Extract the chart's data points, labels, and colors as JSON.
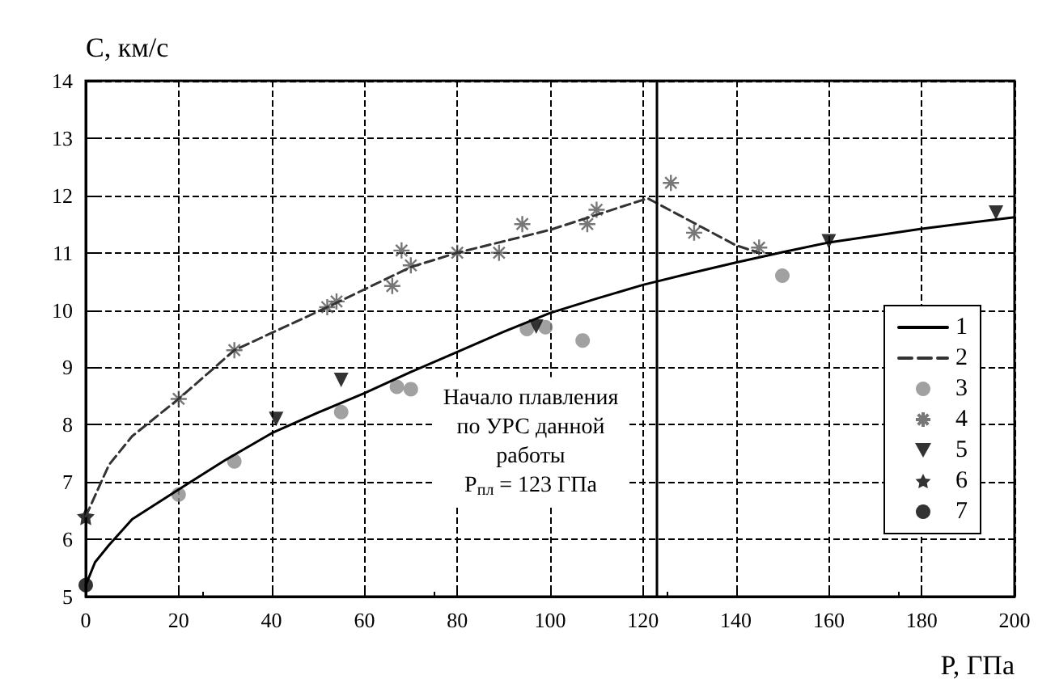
{
  "chart_data": {
    "type": "scatter",
    "xlabel": "P, ГПа",
    "ylabel": "C, км/с",
    "xlim": [
      0,
      200
    ],
    "xticks": [
      0,
      20,
      40,
      60,
      80,
      100,
      120,
      140,
      160,
      180,
      200
    ],
    "ylim": [
      5,
      14
    ],
    "yticks": [
      5,
      6,
      7,
      8,
      9,
      10,
      11,
      12,
      13,
      14
    ],
    "grid": true,
    "legend": "bottom right",
    "series": [
      {
        "name": "1",
        "type": "line",
        "color": "#000000",
        "marker": "none",
        "line_style": "solid",
        "x": [
          0,
          2,
          5,
          10,
          20,
          30,
          40,
          50,
          60,
          70,
          80,
          90,
          100,
          110,
          120,
          130,
          140,
          150,
          160,
          170,
          180,
          190,
          200
        ],
        "values": [
          5.2,
          5.6,
          5.9,
          6.35,
          6.87,
          7.38,
          7.85,
          8.21,
          8.55,
          8.92,
          9.27,
          9.62,
          9.95,
          10.2,
          10.44,
          10.64,
          10.83,
          11.01,
          11.18,
          11.3,
          11.42,
          11.52,
          11.62
        ]
      },
      {
        "name": "2",
        "type": "line",
        "color": "#333333",
        "marker": "none",
        "line_style": "dashed",
        "x": [
          0,
          5,
          10,
          20,
          32,
          52,
          70,
          80,
          100,
          121,
          140,
          145
        ],
        "values": [
          6.4,
          7.3,
          7.8,
          8.45,
          9.3,
          10.05,
          10.75,
          11.0,
          11.4,
          11.95,
          11.13,
          11.0
        ]
      },
      {
        "name": "3",
        "color": "#8a8a8a",
        "marker": "circle",
        "x": [
          20,
          32,
          55,
          67,
          70,
          95,
          99,
          107,
          150
        ],
        "values": [
          6.78,
          7.36,
          8.22,
          8.66,
          8.62,
          9.67,
          9.7,
          9.47,
          10.6
        ]
      },
      {
        "name": "4",
        "color": "#555555",
        "marker": "cross",
        "x": [
          20,
          32,
          52,
          54,
          66,
          68,
          70,
          80,
          89,
          94,
          108,
          110,
          126,
          131,
          145
        ],
        "values": [
          8.45,
          9.3,
          10.05,
          10.15,
          10.42,
          11.04,
          10.78,
          11.0,
          11.0,
          11.5,
          11.5,
          11.75,
          12.22,
          11.35,
          11.09
        ]
      },
      {
        "name": "5",
        "color": "#000000",
        "marker": "triangle",
        "x": [
          41,
          55,
          97,
          160,
          196
        ],
        "values": [
          8.1,
          8.78,
          9.71,
          11.2,
          11.7
        ]
      },
      {
        "name": "6",
        "color": "#000000",
        "marker": "star",
        "x": [
          0
        ],
        "values": [
          6.4
        ]
      },
      {
        "name": "7",
        "color": "#000000",
        "marker": "circle",
        "x": [
          0
        ],
        "values": [
          5.2
        ]
      }
    ],
    "ref_lines": [
      {
        "axis": "x",
        "value": 123,
        "label": "Начало плавления\nпо УРС данной\nработы\nP$_{пл}$ = 123 ГПа",
        "color": "#000000",
        "line_style": "solid"
      }
    ]
  }
}
